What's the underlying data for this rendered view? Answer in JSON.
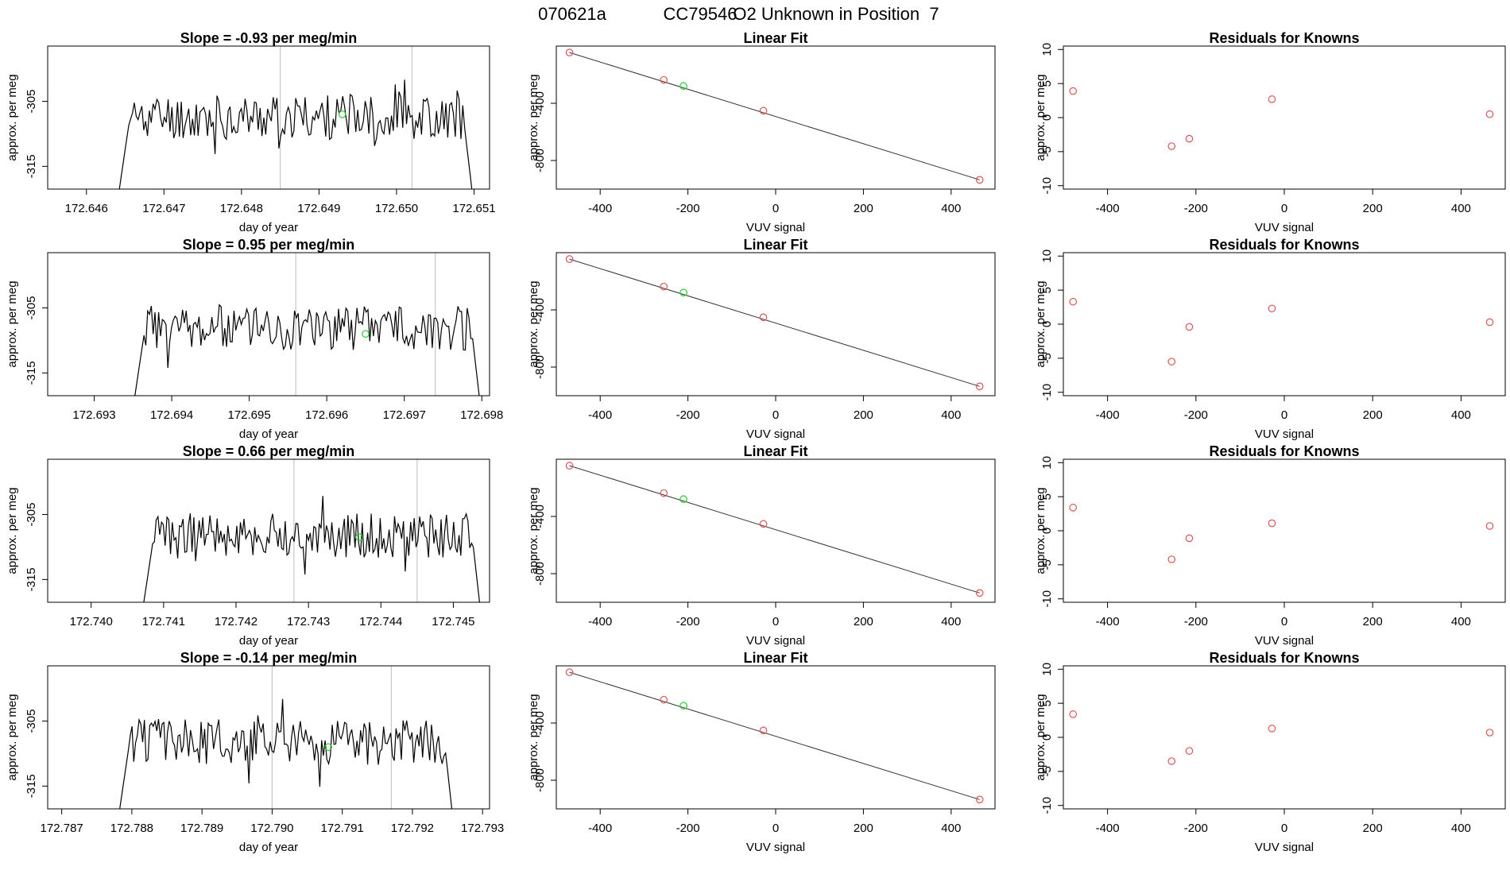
{
  "page": {
    "title_run": "070621a",
    "title_id": "CC79546",
    "title_desc": "O2 Unknown in Position  7"
  },
  "colors": {
    "series": "#000000",
    "known": "#dd5555",
    "unknown": "#22cc22",
    "marker": "#c8c8c8"
  },
  "chart_data": [
    {
      "type": "line",
      "row": 1,
      "title": "Slope =  -0.93  per meg/min",
      "xlabel": "day of year",
      "ylabel": "approx. per meg",
      "xlim": [
        172.6455,
        172.6512
      ],
      "ylim": [
        -318.5,
        -296.5
      ],
      "xticks": [
        "172.646",
        "172.647",
        "172.648",
        "172.649",
        "172.650",
        "172.651"
      ],
      "yticks": [
        -305,
        -315
      ],
      "start": 172.6464,
      "end": 172.651,
      "level": -307.4,
      "markers": [
        172.6485,
        172.6502
      ],
      "unknown_point": {
        "x": 172.6493,
        "y": -307.0
      },
      "seed": 11
    },
    {
      "type": "line",
      "row": 2,
      "title": "Slope =  0.95  per meg/min",
      "xlabel": "day of year",
      "ylabel": "approx. per meg",
      "xlim": [
        172.6924,
        172.6981
      ],
      "ylim": [
        -318.5,
        -296.5
      ],
      "xticks": [
        "172.693",
        "172.694",
        "172.695",
        "172.696",
        "172.697",
        "172.698"
      ],
      "yticks": [
        -305,
        -315
      ],
      "start": 172.6935,
      "end": 172.698,
      "level": -308.0,
      "markers": [
        172.6956,
        172.6974
      ],
      "unknown_point": {
        "x": 172.6965,
        "y": -309.0
      },
      "seed": 23
    },
    {
      "type": "line",
      "row": 3,
      "title": "Slope =  0.66  per meg/min",
      "xlabel": "day of year",
      "ylabel": "approx. per meg",
      "xlim": [
        172.7394,
        172.7455
      ],
      "ylim": [
        -318.5,
        -296.5
      ],
      "xticks": [
        "172.740",
        "172.741",
        "172.742",
        "172.743",
        "172.744",
        "172.745"
      ],
      "yticks": [
        -305,
        -315
      ],
      "start": 172.7407,
      "end": 172.7454,
      "level": -308.3,
      "markers": [
        172.7428,
        172.7445
      ],
      "unknown_point": {
        "x": 172.7437,
        "y": -308.5
      },
      "seed": 37
    },
    {
      "type": "line",
      "row": 4,
      "title": "Slope =  -0.14  per meg/min",
      "xlabel": "day of year",
      "ylabel": "approx. per meg",
      "xlim": [
        172.7868,
        172.7931
      ],
      "ylim": [
        -318.5,
        -296.5
      ],
      "xticks": [
        "172.787",
        "172.788",
        "172.789",
        "172.790",
        "172.791",
        "172.792",
        "172.793"
      ],
      "yticks": [
        -305,
        -315
      ],
      "start": 172.7878,
      "end": 172.7926,
      "level": -308.2,
      "markers": [
        172.79,
        172.7917
      ],
      "unknown_point": {
        "x": 172.7908,
        "y": -309.0
      },
      "seed": 51
    },
    {
      "type": "scatter",
      "row": 1,
      "title": "Linear Fit",
      "xlabel": "VUV signal",
      "ylabel": "approx. per meg",
      "xlim": [
        -500,
        500
      ],
      "ylim": [
        -1000,
        0
      ],
      "xticks": [
        -400,
        -200,
        0,
        200,
        400
      ],
      "yticks": [
        -400,
        -800
      ],
      "line": [
        [
          -470,
          -45
        ],
        [
          465,
          -935
        ]
      ],
      "known": [
        [
          -470,
          -45
        ],
        [
          -255,
          -237
        ],
        [
          -28,
          -452
        ],
        [
          465,
          -935
        ]
      ],
      "unknown": [
        [
          -210,
          -279
        ]
      ]
    },
    {
      "type": "scatter",
      "row": 2,
      "title": "Linear Fit",
      "xlabel": "VUV signal",
      "ylabel": "approx. per meg",
      "xlim": [
        -500,
        500
      ],
      "ylim": [
        -1000,
        0
      ],
      "xticks": [
        -400,
        -200,
        0,
        200,
        400
      ],
      "yticks": [
        -400,
        -800
      ],
      "line": [
        [
          -470,
          -45
        ],
        [
          465,
          -935
        ]
      ],
      "known": [
        [
          -470,
          -45
        ],
        [
          -255,
          -237
        ],
        [
          -28,
          -452
        ],
        [
          465,
          -935
        ]
      ],
      "unknown": [
        [
          -210,
          -279
        ]
      ]
    },
    {
      "type": "scatter",
      "row": 3,
      "title": "Linear Fit",
      "xlabel": "VUV signal",
      "ylabel": "approx. per meg",
      "xlim": [
        -500,
        500
      ],
      "ylim": [
        -1000,
        0
      ],
      "xticks": [
        -400,
        -200,
        0,
        200,
        400
      ],
      "yticks": [
        -400,
        -800
      ],
      "line": [
        [
          -470,
          -45
        ],
        [
          465,
          -935
        ]
      ],
      "known": [
        [
          -470,
          -45
        ],
        [
          -255,
          -237
        ],
        [
          -28,
          -452
        ],
        [
          465,
          -935
        ]
      ],
      "unknown": [
        [
          -210,
          -279
        ]
      ]
    },
    {
      "type": "scatter",
      "row": 4,
      "title": "Linear Fit",
      "xlabel": "VUV signal",
      "ylabel": "approx. per meg",
      "xlim": [
        -500,
        500
      ],
      "ylim": [
        -1000,
        0
      ],
      "xticks": [
        -400,
        -200,
        0,
        200,
        400
      ],
      "yticks": [
        -400,
        -800
      ],
      "line": [
        [
          -470,
          -45
        ],
        [
          465,
          -935
        ]
      ],
      "known": [
        [
          -470,
          -45
        ],
        [
          -255,
          -237
        ],
        [
          -28,
          -452
        ],
        [
          465,
          -935
        ]
      ],
      "unknown": [
        [
          -210,
          -279
        ]
      ]
    },
    {
      "type": "scatter",
      "row": 1,
      "title": "Residuals for Knowns",
      "xlabel": "VUV signal",
      "ylabel": "approx. per meg",
      "xlim": [
        -500,
        500
      ],
      "ylim": [
        -10.5,
        10.5
      ],
      "xticks": [
        -400,
        -200,
        0,
        200,
        400
      ],
      "yticks": [
        -10,
        -5,
        0,
        5,
        10
      ],
      "known": [
        [
          -478,
          3.9
        ],
        [
          -255,
          -4.2
        ],
        [
          -215,
          -3.1
        ],
        [
          -28,
          2.7
        ],
        [
          465,
          0.5
        ]
      ]
    },
    {
      "type": "scatter",
      "row": 2,
      "title": "Residuals for Knowns",
      "xlabel": "VUV signal",
      "ylabel": "approx. per meg",
      "xlim": [
        -500,
        500
      ],
      "ylim": [
        -10.5,
        10.5
      ],
      "xticks": [
        -400,
        -200,
        0,
        200,
        400
      ],
      "yticks": [
        -10,
        -5,
        0,
        5,
        10
      ],
      "known": [
        [
          -478,
          3.3
        ],
        [
          -255,
          -5.5
        ],
        [
          -215,
          -0.4
        ],
        [
          -28,
          2.3
        ],
        [
          465,
          0.3
        ]
      ]
    },
    {
      "type": "scatter",
      "row": 3,
      "title": "Residuals for Knowns",
      "xlabel": "VUV signal",
      "ylabel": "approx. per meg",
      "xlim": [
        -500,
        500
      ],
      "ylim": [
        -10.5,
        10.5
      ],
      "xticks": [
        -400,
        -200,
        0,
        200,
        400
      ],
      "yticks": [
        -10,
        -5,
        0,
        5,
        10
      ],
      "known": [
        [
          -478,
          3.4
        ],
        [
          -255,
          -4.2
        ],
        [
          -215,
          -1.1
        ],
        [
          -28,
          1.1
        ],
        [
          465,
          0.7
        ]
      ]
    },
    {
      "type": "scatter",
      "row": 4,
      "title": "Residuals for Knowns",
      "xlabel": "VUV signal",
      "ylabel": "approx. per meg",
      "xlim": [
        -500,
        500
      ],
      "ylim": [
        -10.5,
        10.5
      ],
      "xticks": [
        -400,
        -200,
        0,
        200,
        400
      ],
      "yticks": [
        -10,
        -5,
        0,
        5,
        10
      ],
      "known": [
        [
          -478,
          3.4
        ],
        [
          -255,
          -3.5
        ],
        [
          -215,
          -2.0
        ],
        [
          -28,
          1.3
        ],
        [
          465,
          0.7
        ]
      ]
    }
  ]
}
